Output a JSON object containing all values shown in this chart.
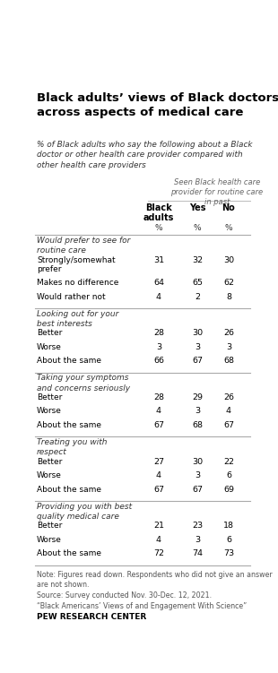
{
  "title": "Black adults’ views of Black doctors\nacross aspects of medical care",
  "subtitle": "% of Black adults who say the following about a Black\ndoctor or other health care provider compared with\nother health care providers",
  "col_header_note": "Seen Black health care\nprovider for routine care\nin past",
  "col_headers": [
    "Black\nadults",
    "Yes",
    "No"
  ],
  "col_units": [
    "%",
    "%",
    "%"
  ],
  "sections": [
    {
      "section_title": "Would prefer to see for\nroutine care",
      "rows": [
        {
          "label": "Strongly/somewhat\nprefer",
          "values": [
            31,
            32,
            30
          ]
        },
        {
          "label": "Makes no difference",
          "values": [
            64,
            65,
            62
          ]
        },
        {
          "label": "Would rather not",
          "values": [
            4,
            2,
            8
          ]
        }
      ]
    },
    {
      "section_title": "Looking out for your\nbest interests",
      "rows": [
        {
          "label": "Better",
          "values": [
            28,
            30,
            26
          ]
        },
        {
          "label": "Worse",
          "values": [
            3,
            3,
            3
          ]
        },
        {
          "label": "About the same",
          "values": [
            66,
            67,
            68
          ]
        }
      ]
    },
    {
      "section_title": "Taking your symptoms\nand concerns seriously",
      "rows": [
        {
          "label": "Better",
          "values": [
            28,
            29,
            26
          ]
        },
        {
          "label": "Worse",
          "values": [
            4,
            3,
            4
          ]
        },
        {
          "label": "About the same",
          "values": [
            67,
            68,
            67
          ]
        }
      ]
    },
    {
      "section_title": "Treating you with\nrespect",
      "rows": [
        {
          "label": "Better",
          "values": [
            27,
            30,
            22
          ]
        },
        {
          "label": "Worse",
          "values": [
            4,
            3,
            6
          ]
        },
        {
          "label": "About the same",
          "values": [
            67,
            67,
            69
          ]
        }
      ]
    },
    {
      "section_title": "Providing you with best\nquality medical care",
      "rows": [
        {
          "label": "Better",
          "values": [
            21,
            23,
            18
          ]
        },
        {
          "label": "Worse",
          "values": [
            4,
            3,
            6
          ]
        },
        {
          "label": "About the same",
          "values": [
            72,
            74,
            73
          ]
        }
      ]
    }
  ],
  "note": "Note: Figures read down. Respondents who did not give an answer\nare not shown.\nSource: Survey conducted Nov. 30-Dec. 12, 2021.\n“Black Americans’ Views of and Engagement With Science”",
  "source_label": "PEW RESEARCH CENTER",
  "bg_color": "#ffffff",
  "text_color": "#000000",
  "line_color": "#aaaaaa",
  "note_color": "#555555"
}
